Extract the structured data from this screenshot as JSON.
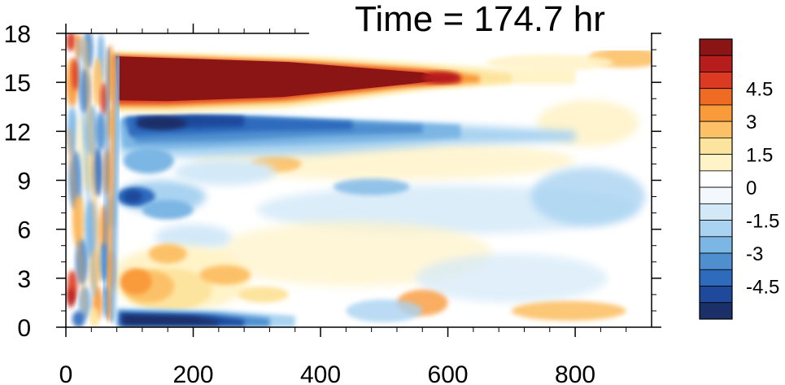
{
  "chart_data": {
    "type": "heatmap",
    "title": "Time = 174.7 hr",
    "xlabel": "",
    "ylabel": "",
    "xlim": [
      0,
      920
    ],
    "ylim": [
      0,
      18
    ],
    "x_ticks": [
      0,
      200,
      400,
      600,
      800
    ],
    "y_ticks": [
      0,
      3,
      6,
      9,
      12,
      15,
      18
    ],
    "colorbar": {
      "levels": [
        -5.25,
        -4.5,
        -3.75,
        -3,
        -2.25,
        -1.5,
        -0.75,
        0,
        0.75,
        1.5,
        2.25,
        3,
        3.75,
        4.5,
        5.25
      ],
      "labels": [
        "4.5",
        "3",
        "1.5",
        "0",
        "-1.5",
        "-3",
        "-4.5"
      ],
      "label_values": [
        4.5,
        3,
        1.5,
        0,
        -1.5,
        -3,
        -4.5
      ],
      "colors": [
        "#1b2f68",
        "#1f4a9b",
        "#2f6bbd",
        "#4f8fcf",
        "#7cb6e4",
        "#a9d3f1",
        "#d3e9f8",
        "#f2f8fc",
        "#ffffff",
        "#fff3c8",
        "#fde49e",
        "#fcc167",
        "#f99a3b",
        "#ef6b24",
        "#dc3a22",
        "#b71d1d",
        "#8b1414"
      ]
    },
    "features": [
      {
        "name": "upper positive band",
        "x": [
          75,
          660
        ],
        "y_center": 14.8,
        "value": 5.5
      },
      {
        "name": "upper negative band",
        "x": [
          80,
          620
        ],
        "y_center": 12.0,
        "value": -5.0
      },
      {
        "name": "near-surface negative band",
        "x": [
          75,
          360
        ],
        "y_center": 0.6,
        "value": -5.0
      },
      {
        "name": "low-level positive region",
        "x": [
          75,
          340
        ],
        "y_center": 2.5,
        "value": 2.0
      },
      {
        "name": "mid-level negative region",
        "x": [
          80,
          330
        ],
        "y_center": 7.5,
        "value": -3.0
      }
    ]
  }
}
